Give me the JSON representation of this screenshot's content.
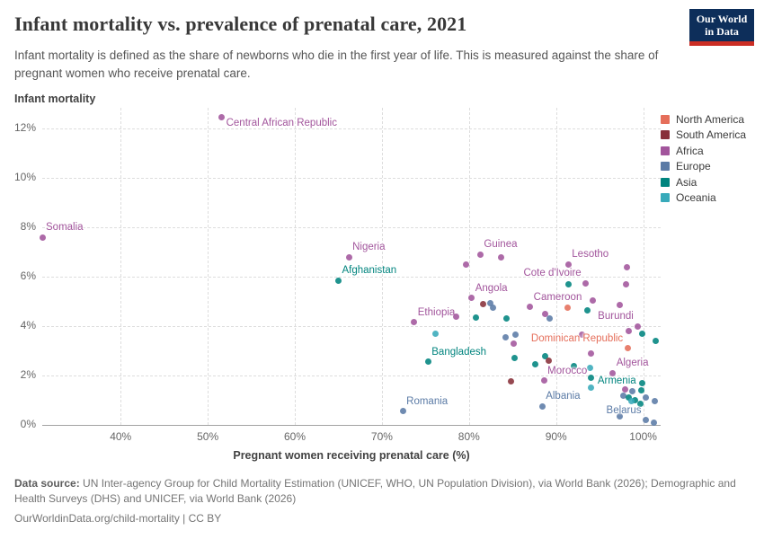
{
  "header": {
    "title": "Infant mortality vs. prevalence of prenatal care, 2021",
    "subtitle": "Infant mortality is defined as the share of newborns who die in the first year of life. This is measured against the share of pregnant women who receive prenatal care.",
    "logo": {
      "line1": "Our World",
      "line2": "in Data",
      "bg_color": "#0d2e5a",
      "accent_color": "#cb2d24"
    }
  },
  "chart_data": {
    "type": "scatter",
    "title": "Infant mortality vs. prevalence of prenatal care, 2021",
    "xlabel": "Pregnant women receiving prenatal care (%)",
    "ylabel": "Infant mortality",
    "xlim": [
      31,
      102
    ],
    "ylim": [
      0,
      12.85
    ],
    "x_ticks": [
      40,
      50,
      60,
      70,
      80,
      90,
      100
    ],
    "y_ticks": [
      0,
      2,
      4,
      6,
      8,
      10,
      12
    ],
    "tick_suffix": "%",
    "grid": "dashed",
    "legend_position": "right",
    "continent_colors": {
      "North America": "#e56e5a",
      "South America": "#883039",
      "Africa": "#a2559c",
      "Europe": "#5b7ba6",
      "Asia": "#00847e",
      "Oceania": "#38aaba"
    },
    "legend": [
      "North America",
      "South America",
      "Africa",
      "Europe",
      "Asia",
      "Oceania"
    ],
    "points": [
      {
        "x": 51.6,
        "y": 12.45,
        "c": "Africa",
        "label": "Central African Republic",
        "pos": "br"
      },
      {
        "x": 31.0,
        "y": 7.6,
        "c": "Africa",
        "label": "Somalia",
        "pos": "ar"
      },
      {
        "x": 66.2,
        "y": 6.8,
        "c": "Africa",
        "label": "Nigeria",
        "pos": "ar"
      },
      {
        "x": 65.0,
        "y": 5.85,
        "c": "Asia",
        "label": "Afghanistan",
        "pos": "ar"
      },
      {
        "x": 79.7,
        "y": 6.5,
        "c": "Africa"
      },
      {
        "x": 81.3,
        "y": 6.9,
        "c": "Africa",
        "label": "Guinea",
        "pos": "ar"
      },
      {
        "x": 83.7,
        "y": 6.8,
        "c": "Africa"
      },
      {
        "x": 91.4,
        "y": 6.5,
        "c": "Africa",
        "label": "Lesotho",
        "pos": "ar"
      },
      {
        "x": 98.1,
        "y": 6.4,
        "c": "Africa"
      },
      {
        "x": 91.4,
        "y": 5.7,
        "c": "Asia"
      },
      {
        "x": 93.4,
        "y": 5.75,
        "c": "Africa",
        "label": "Cote d'Ivoire",
        "pos": "al"
      },
      {
        "x": 98.0,
        "y": 5.7,
        "c": "Africa"
      },
      {
        "x": 94.2,
        "y": 5.05,
        "c": "Africa"
      },
      {
        "x": 97.3,
        "y": 4.85,
        "c": "Africa"
      },
      {
        "x": 80.3,
        "y": 5.15,
        "c": "Africa",
        "label": "Angola",
        "pos": "ar"
      },
      {
        "x": 81.6,
        "y": 4.9,
        "c": "South America"
      },
      {
        "x": 82.4,
        "y": 4.95,
        "c": "Europe"
      },
      {
        "x": 82.8,
        "y": 4.75,
        "c": "Europe"
      },
      {
        "x": 87.0,
        "y": 4.78,
        "c": "Africa",
        "label": "Cameroon",
        "pos": "ar"
      },
      {
        "x": 91.3,
        "y": 4.76,
        "c": "North America"
      },
      {
        "x": 93.6,
        "y": 4.65,
        "c": "Asia"
      },
      {
        "x": 88.7,
        "y": 4.5,
        "c": "Africa"
      },
      {
        "x": 89.3,
        "y": 4.3,
        "c": "Europe"
      },
      {
        "x": 80.8,
        "y": 4.36,
        "c": "Asia"
      },
      {
        "x": 84.3,
        "y": 4.3,
        "c": "Asia"
      },
      {
        "x": 73.7,
        "y": 4.15,
        "c": "Africa",
        "label": "Ethiopia",
        "pos": "ar"
      },
      {
        "x": 78.5,
        "y": 4.4,
        "c": "Africa"
      },
      {
        "x": 99.4,
        "y": 4.0,
        "c": "Africa",
        "label": "Burundi",
        "pos": "al"
      },
      {
        "x": 98.3,
        "y": 3.8,
        "c": "Africa"
      },
      {
        "x": 99.9,
        "y": 3.7,
        "c": "Asia"
      },
      {
        "x": 101.4,
        "y": 3.4,
        "c": "Asia"
      },
      {
        "x": 93.0,
        "y": 3.67,
        "c": "Africa"
      },
      {
        "x": 76.2,
        "y": 3.7,
        "c": "Oceania"
      },
      {
        "x": 84.2,
        "y": 3.56,
        "c": "Europe"
      },
      {
        "x": 85.3,
        "y": 3.67,
        "c": "Europe"
      },
      {
        "x": 85.1,
        "y": 3.3,
        "c": "Africa"
      },
      {
        "x": 98.2,
        "y": 3.1,
        "c": "North America",
        "label": "Dominican Republic",
        "pos": "al"
      },
      {
        "x": 94.0,
        "y": 2.9,
        "c": "Africa"
      },
      {
        "x": 85.2,
        "y": 2.7,
        "c": "Asia"
      },
      {
        "x": 75.3,
        "y": 2.56,
        "c": "Asia",
        "label": "Bangladesh",
        "pos": "ar"
      },
      {
        "x": 88.7,
        "y": 2.78,
        "c": "Asia"
      },
      {
        "x": 89.2,
        "y": 2.6,
        "c": "South America"
      },
      {
        "x": 87.6,
        "y": 2.47,
        "c": "Asia"
      },
      {
        "x": 92.0,
        "y": 2.4,
        "c": "Asia"
      },
      {
        "x": 93.9,
        "y": 2.3,
        "c": "Oceania"
      },
      {
        "x": 96.5,
        "y": 2.1,
        "c": "Africa",
        "label": "Algeria",
        "pos": "ar"
      },
      {
        "x": 94.0,
        "y": 1.9,
        "c": "Asia"
      },
      {
        "x": 88.6,
        "y": 1.8,
        "c": "Africa",
        "label": "Morocco",
        "pos": "ar"
      },
      {
        "x": 84.8,
        "y": 1.75,
        "c": "South America"
      },
      {
        "x": 94.0,
        "y": 1.5,
        "c": "Oceania"
      },
      {
        "x": 99.9,
        "y": 1.7,
        "c": "Asia",
        "label": "Armenia",
        "pos": "left"
      },
      {
        "x": 97.9,
        "y": 1.45,
        "c": "Africa"
      },
      {
        "x": 98.7,
        "y": 1.35,
        "c": "Europe"
      },
      {
        "x": 99.8,
        "y": 1.4,
        "c": "Asia"
      },
      {
        "x": 97.7,
        "y": 1.17,
        "c": "Europe"
      },
      {
        "x": 98.3,
        "y": 1.1,
        "c": "Asia"
      },
      {
        "x": 100.3,
        "y": 1.1,
        "c": "Europe"
      },
      {
        "x": 99.1,
        "y": 1.0,
        "c": "Asia"
      },
      {
        "x": 98.6,
        "y": 0.95,
        "c": "Oceania"
      },
      {
        "x": 99.7,
        "y": 0.87,
        "c": "Asia"
      },
      {
        "x": 101.3,
        "y": 0.95,
        "c": "Europe"
      },
      {
        "x": 88.4,
        "y": 0.76,
        "c": "Europe",
        "label": "Albania",
        "pos": "ar"
      },
      {
        "x": 72.4,
        "y": 0.55,
        "c": "Europe",
        "label": "Romania",
        "pos": "ar"
      },
      {
        "x": 97.3,
        "y": 0.36,
        "c": "Europe"
      },
      {
        "x": 100.3,
        "y": 0.2,
        "c": "Europe",
        "label": "Belarus",
        "pos": "al"
      },
      {
        "x": 101.2,
        "y": 0.08,
        "c": "Europe"
      }
    ]
  },
  "footer": {
    "source_label": "Data source:",
    "source_text": " UN Inter-agency Group for Child Mortality Estimation (UNICEF, WHO, UN Population Division), via World Bank (2026); Demographic and Health Surveys (DHS) and UNICEF, via World Bank (2026)",
    "link": "OurWorldinData.org/child-mortality",
    "separator": " | ",
    "license": "CC BY"
  }
}
